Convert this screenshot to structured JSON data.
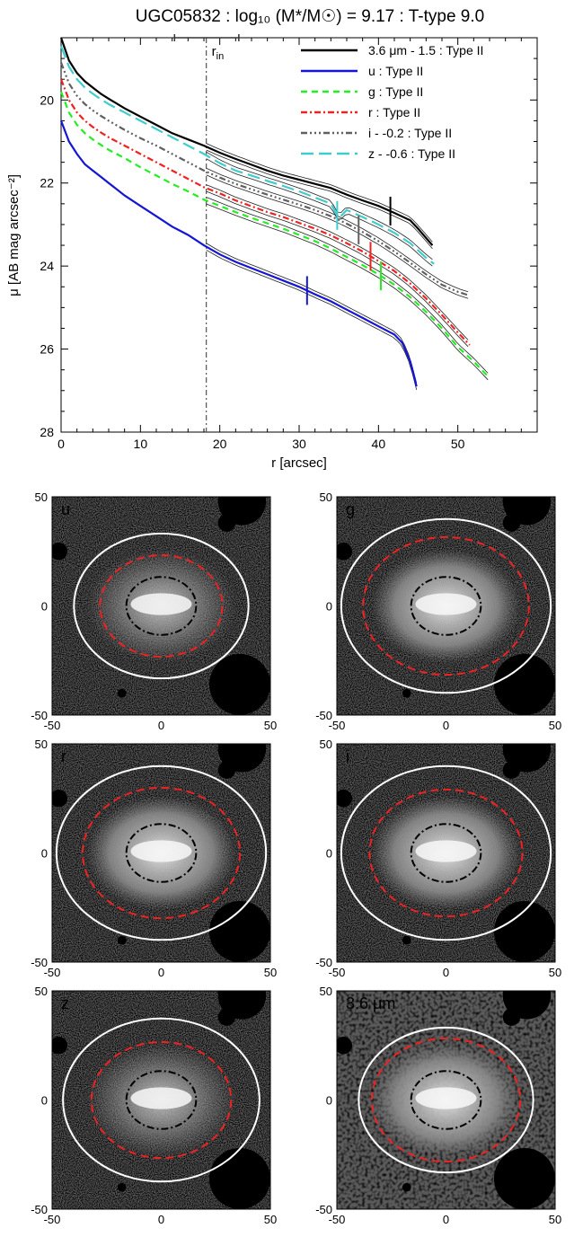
{
  "profile_chart": {
    "title": "UGC05832 : log₁₀ (M*/M☉) = 9.17 : T-type 9.0",
    "xlabel": "r [arcsec]",
    "ylabel": "μ [AB mag arcsec⁻²]",
    "rin_label": "r",
    "rin_sub": "in",
    "x_ticks": [
      "0",
      "10",
      "20",
      "30",
      "40",
      "50"
    ],
    "y_ticks": [
      "20",
      "22",
      "24",
      "26",
      "28"
    ],
    "legend": [
      {
        "label": "3.6 μm - 1.5 : Type II",
        "color": "#000000",
        "dash": ""
      },
      {
        "label": "u : Type II",
        "color": "#1515d6",
        "dash": ""
      },
      {
        "label": "g : Type II",
        "color": "#22ee22",
        "dash": "7,5"
      },
      {
        "label": "r : Type II",
        "color": "#ee2222",
        "dash": "7,3,2,3"
      },
      {
        "label": "i - -0.2 : Type II",
        "color": "#606060",
        "dash": "7,3,2,3,2,3,2,3"
      },
      {
        "label": "z - -0.6 : Type II",
        "color": "#40cccc",
        "dash": "14,6"
      }
    ]
  },
  "chart_data": [
    {
      "type": "line",
      "title": "UGC05832 : log₁₀ (M*/M☉) = 9.17 : T-type 9.0",
      "xlabel": "r [arcsec]",
      "ylabel": "μ [AB mag arcsec⁻²]",
      "xlim": [
        0,
        60
      ],
      "ylim": [
        28,
        18.5
      ],
      "y_inverted": true,
      "r_in": 18.3,
      "r_in_range": [
        14.3,
        22.4
      ],
      "series": [
        {
          "name": "3.6 μm - 1.5 : Type II",
          "color": "#000000",
          "x": [
            0,
            1,
            2,
            3,
            4,
            5,
            6,
            8,
            10,
            12,
            14,
            16,
            18,
            20,
            22,
            24,
            26,
            28,
            30,
            32,
            34,
            36,
            38,
            40,
            42,
            44,
            45,
            46.8
          ],
          "y": [
            18.5,
            19.05,
            19.35,
            19.55,
            19.7,
            19.85,
            19.97,
            20.2,
            20.4,
            20.6,
            20.8,
            20.95,
            21.1,
            21.27,
            21.42,
            21.56,
            21.7,
            21.82,
            21.92,
            22.02,
            22.12,
            22.28,
            22.42,
            22.55,
            22.72,
            22.9,
            23.1,
            23.5
          ],
          "break_r": 41.5
        },
        {
          "name": "u : Type II",
          "color": "#1515d6",
          "x": [
            0,
            1,
            2,
            3,
            4,
            5,
            6,
            8,
            10,
            12,
            14,
            16,
            18,
            20,
            22,
            24,
            26,
            28,
            30,
            32,
            34,
            36,
            38,
            40,
            42,
            43,
            44,
            44.8
          ],
          "y": [
            20.5,
            21.0,
            21.3,
            21.55,
            21.7,
            21.85,
            22.0,
            22.3,
            22.55,
            22.8,
            23.05,
            23.25,
            23.5,
            23.72,
            23.9,
            24.05,
            24.2,
            24.35,
            24.5,
            24.68,
            24.85,
            25.05,
            25.25,
            25.45,
            25.65,
            25.85,
            26.3,
            26.9
          ],
          "break_r": 31.0
        },
        {
          "name": "g : Type II",
          "color": "#22ee22",
          "x": [
            0,
            1,
            2,
            3,
            4,
            5,
            6,
            8,
            10,
            12,
            14,
            16,
            18,
            20,
            22,
            24,
            26,
            28,
            30,
            32,
            34,
            36,
            38,
            40,
            42,
            44,
            46,
            48,
            50,
            52,
            54
          ],
          "y": [
            19.8,
            20.3,
            20.6,
            20.8,
            20.95,
            21.08,
            21.2,
            21.4,
            21.62,
            21.82,
            22.02,
            22.2,
            22.4,
            22.55,
            22.7,
            22.84,
            22.97,
            23.1,
            23.25,
            23.4,
            23.58,
            23.78,
            23.98,
            24.2,
            24.45,
            24.75,
            25.1,
            25.5,
            25.95,
            26.3,
            26.7
          ],
          "break_r": 40.3
        },
        {
          "name": "r : Type II",
          "color": "#ee2222",
          "x": [
            0,
            1,
            2,
            3,
            4,
            5,
            6,
            8,
            10,
            12,
            14,
            16,
            18,
            20,
            22,
            24,
            26,
            28,
            30,
            32,
            34,
            36,
            38,
            40,
            42,
            44,
            46,
            48,
            50,
            51.5
          ],
          "y": [
            19.5,
            20.0,
            20.3,
            20.5,
            20.65,
            20.78,
            20.9,
            21.1,
            21.3,
            21.5,
            21.7,
            21.9,
            22.1,
            22.25,
            22.42,
            22.56,
            22.7,
            22.82,
            22.96,
            23.1,
            23.26,
            23.45,
            23.65,
            23.88,
            24.12,
            24.42,
            24.78,
            25.18,
            25.6,
            25.9
          ],
          "break_r": 39.0
        },
        {
          "name": "i - -0.2 : Type II",
          "color": "#606060",
          "x": [
            0,
            1,
            2,
            3,
            4,
            5,
            6,
            8,
            10,
            12,
            14,
            16,
            18,
            20,
            22,
            24,
            26,
            28,
            30,
            32,
            34,
            36,
            38,
            40,
            42,
            44,
            46,
            48,
            50,
            51.3
          ],
          "y": [
            19.1,
            19.6,
            19.9,
            20.1,
            20.25,
            20.38,
            20.5,
            20.72,
            20.92,
            21.1,
            21.3,
            21.5,
            21.7,
            21.87,
            22.02,
            22.15,
            22.28,
            22.4,
            22.52,
            22.65,
            22.8,
            22.98,
            23.18,
            23.4,
            23.65,
            23.92,
            24.2,
            24.45,
            24.62,
            24.7
          ],
          "break_r": 37.5
        },
        {
          "name": "z - -0.6 : Type II",
          "color": "#40cccc",
          "x": [
            0,
            1,
            2,
            3,
            4,
            5,
            6,
            8,
            10,
            12,
            14,
            16,
            18,
            20,
            22,
            24,
            26,
            28,
            30,
            32,
            34,
            35,
            36,
            38,
            40,
            42,
            44,
            46,
            47
          ],
          "y": [
            18.7,
            19.2,
            19.5,
            19.7,
            19.85,
            19.98,
            20.1,
            20.3,
            20.5,
            20.7,
            20.9,
            21.1,
            21.3,
            21.52,
            21.7,
            21.82,
            21.95,
            22.07,
            22.2,
            22.35,
            22.5,
            22.85,
            22.65,
            22.82,
            23.0,
            23.2,
            23.45,
            23.8,
            23.95
          ],
          "break_r": 34.8
        }
      ]
    },
    {
      "type": "heatmap",
      "title": "galaxy image panels",
      "xlim": [
        -50,
        50
      ],
      "ylim": [
        -50,
        50
      ],
      "tick_labels": [
        "-50",
        "0",
        "50"
      ],
      "panels": [
        {
          "label": "u",
          "outer_ellipse_r": 40,
          "break_ellipse_r": 28,
          "inner_ellipse_r": 16
        },
        {
          "label": "g",
          "outer_ellipse_r": 48,
          "break_ellipse_r": 38,
          "inner_ellipse_r": 16
        },
        {
          "label": "r",
          "outer_ellipse_r": 48,
          "break_ellipse_r": 36,
          "inner_ellipse_r": 16
        },
        {
          "label": "i",
          "outer_ellipse_r": 48,
          "break_ellipse_r": 35,
          "inner_ellipse_r": 16
        },
        {
          "label": "z",
          "outer_ellipse_r": 45,
          "break_ellipse_r": 32,
          "inner_ellipse_r": 16
        },
        {
          "label": "3.6 μm",
          "outer_ellipse_r": 40,
          "break_ellipse_r": 34,
          "inner_ellipse_r": 16
        }
      ]
    }
  ]
}
